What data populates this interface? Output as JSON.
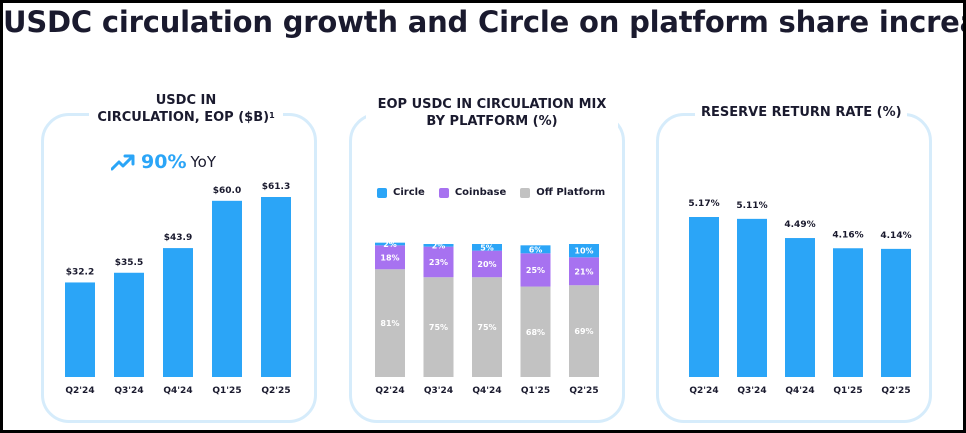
{
  "headline": "USDC circulation growth and Circle on platform share increasing",
  "panels": {
    "circulation": {
      "title_line1": "USDC IN",
      "title_line2": "CIRCULATION, EOP ($B)",
      "title_sup": "1",
      "yoy_value": "90%",
      "yoy_label": "YoY",
      "icon": "trend-up-arrow-icon"
    },
    "mix": {
      "title_line1": "EOP USDC IN CIRCULATION MIX",
      "title_line2": "BY PLATFORM (%)"
    },
    "reserve": {
      "title": "RESERVE RETURN RATE (%)"
    }
  },
  "colors": {
    "bar_blue": "#2ba5f7",
    "circle": "#2ba5f7",
    "coinbase": "#a772f0",
    "off_platform": "#c2c2c2",
    "panel_border": "#d6ecfb",
    "text_dark": "#1a1a2e"
  },
  "chart_data": [
    {
      "type": "bar",
      "categories": [
        "Q2'24",
        "Q3'24",
        "Q4'24",
        "Q1'25",
        "Q2'25"
      ],
      "values": [
        32.2,
        35.5,
        43.9,
        60.0,
        61.3
      ],
      "labels": [
        "$32.2",
        "$35.5",
        "$43.9",
        "$60.0",
        "$61.3"
      ],
      "title": "USDC IN CIRCULATION, EOP ($B)",
      "ylim": [
        0,
        65
      ]
    },
    {
      "type": "bar",
      "stacked": true,
      "categories": [
        "Q2'24",
        "Q3'24",
        "Q4'24",
        "Q1'25",
        "Q2'25"
      ],
      "series": [
        {
          "name": "Off Platform",
          "values": [
            81,
            75,
            75,
            68,
            69
          ],
          "color": "#c2c2c2"
        },
        {
          "name": "Coinbase",
          "values": [
            18,
            23,
            20,
            25,
            21
          ],
          "color": "#a772f0"
        },
        {
          "name": "Circle",
          "values": [
            2,
            2,
            5,
            6,
            10
          ],
          "color": "#2ba5f7"
        }
      ],
      "legend_order": [
        "Circle",
        "Coinbase",
        "Off Platform"
      ],
      "legend": "top",
      "title": "EOP USDC IN CIRCULATION MIX BY PLATFORM (%)",
      "ylim": [
        0,
        100
      ]
    },
    {
      "type": "bar",
      "categories": [
        "Q2'24",
        "Q3'24",
        "Q4'24",
        "Q1'25",
        "Q2'25"
      ],
      "values": [
        5.17,
        5.11,
        4.49,
        4.16,
        4.14
      ],
      "labels": [
        "5.17%",
        "5.11%",
        "4.49%",
        "4.16%",
        "4.14%"
      ],
      "title": "RESERVE RETURN RATE (%)",
      "ylim": [
        0,
        5.5
      ]
    }
  ]
}
